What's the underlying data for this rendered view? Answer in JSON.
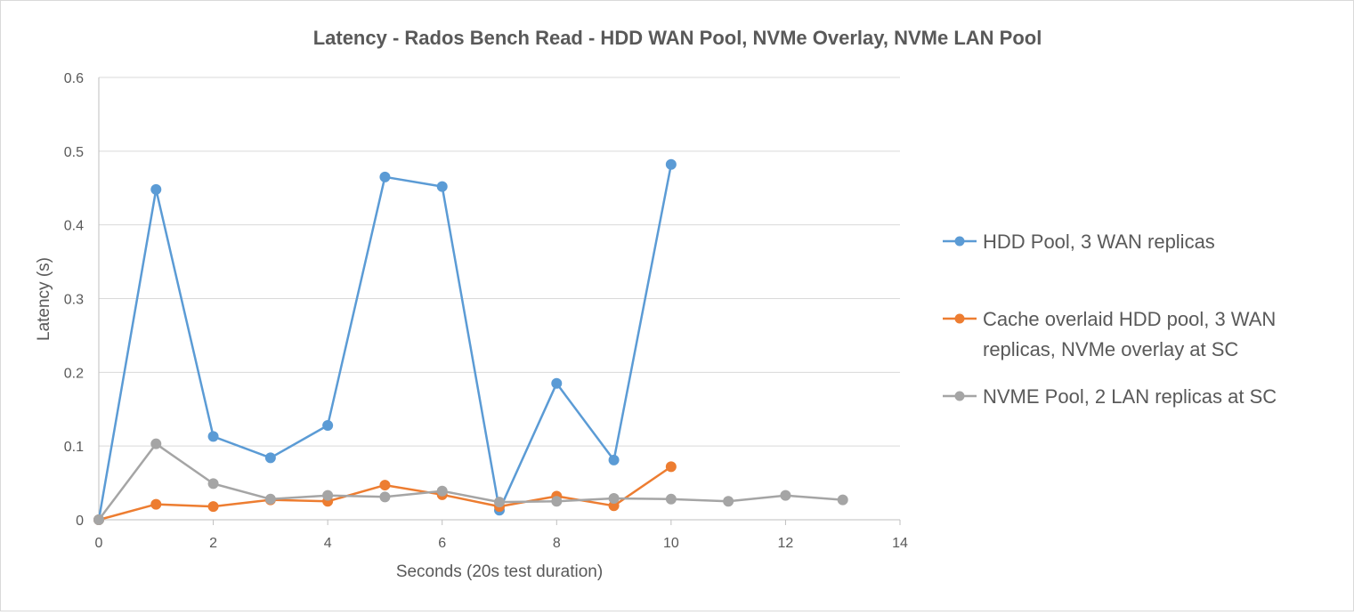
{
  "chart_data": {
    "type": "line",
    "title": "Latency - Rados Bench Read - HDD WAN Pool, NVMe Overlay, NVMe LAN Pool",
    "xlabel": "Seconds (20s test duration)",
    "ylabel": "Latency (s)",
    "xlim": [
      0,
      14
    ],
    "ylim": [
      0,
      0.6
    ],
    "x_ticks": [
      "0",
      "2",
      "4",
      "6",
      "8",
      "10",
      "12",
      "14"
    ],
    "y_ticks": [
      "0",
      "0.1",
      "0.2",
      "0.3",
      "0.4",
      "0.5",
      "0.6"
    ],
    "grid": "horizontal",
    "legend_position": "right",
    "series": [
      {
        "name": "HDD Pool, 3 WAN replicas",
        "legend_lines": [
          "HDD Pool, 3 WAN replicas"
        ],
        "color": "#5b9bd5",
        "x": [
          0,
          1,
          2,
          3,
          4,
          5,
          6,
          7,
          8,
          9,
          10
        ],
        "y": [
          0.0,
          0.448,
          0.113,
          0.084,
          0.128,
          0.465,
          0.452,
          0.013,
          0.185,
          0.081,
          0.482
        ]
      },
      {
        "name": "Cache overlaid HDD pool, 3 WAN replicas, NVMe overlay at SC",
        "legend_lines": [
          "Cache overlaid HDD pool, 3 WAN",
          "replicas, NVMe overlay at SC"
        ],
        "color": "#ed7d31",
        "x": [
          0,
          1,
          2,
          3,
          4,
          5,
          6,
          7,
          8,
          9,
          10
        ],
        "y": [
          0.0,
          0.021,
          0.018,
          0.027,
          0.025,
          0.047,
          0.034,
          0.018,
          0.032,
          0.019,
          0.072
        ]
      },
      {
        "name": "NVME Pool, 2 LAN replicas at SC",
        "legend_lines": [
          "NVME Pool, 2 LAN replicas at SC"
        ],
        "color": "#a5a5a5",
        "x": [
          0,
          1,
          2,
          3,
          4,
          5,
          6,
          7,
          8,
          9,
          10,
          11,
          12,
          13
        ],
        "y": [
          0.0,
          0.103,
          0.049,
          0.028,
          0.033,
          0.031,
          0.039,
          0.024,
          0.025,
          0.029,
          0.028,
          0.025,
          0.033,
          0.027
        ]
      }
    ]
  }
}
